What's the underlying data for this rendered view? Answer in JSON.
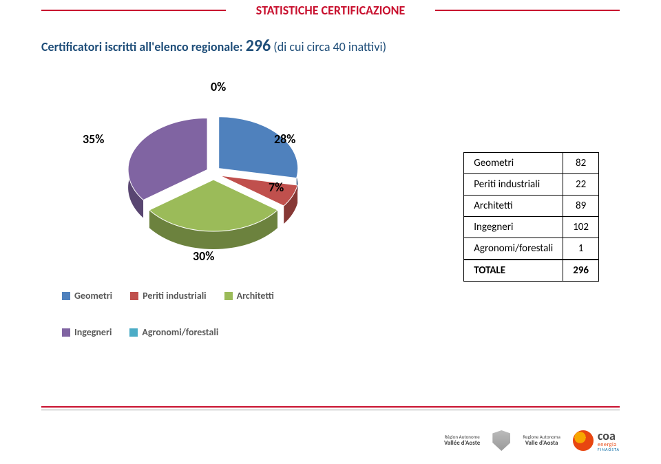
{
  "header": {
    "title": "STATISTICHE CERTIFICAZIONE"
  },
  "subtitle": {
    "prefix": "Certificatori iscritti all'elenco regionale: ",
    "count": "296",
    "suffix": " (di cui circa 40 inattivi)"
  },
  "chart": {
    "type": "pie-3d",
    "background_color": "#ffffff",
    "label_fontsize": 18,
    "label_color": "#000000",
    "slices": [
      {
        "label": "Geometri",
        "pct": 28,
        "pct_label": "28%",
        "color": "#4f81bd"
      },
      {
        "label": "Periti industriali",
        "pct": 7,
        "pct_label": "7%",
        "color": "#c0504d"
      },
      {
        "label": "Architetti",
        "pct": 30,
        "pct_label": "30%",
        "color": "#9bbb59"
      },
      {
        "label": "Ingegneri",
        "pct": 35,
        "pct_label": "35%",
        "color": "#8064a2"
      },
      {
        "label": "Agronomi/forestali",
        "pct": 0,
        "pct_label": "0%",
        "color": "#4bacc6"
      }
    ]
  },
  "table": {
    "rows": [
      {
        "label": "Geometri",
        "value": "82"
      },
      {
        "label": "Periti industriali",
        "value": "22"
      },
      {
        "label": "Architetti",
        "value": "89"
      },
      {
        "label": "Ingegneri",
        "value": "102"
      },
      {
        "label": "Agronomi/forestali",
        "value": "1"
      }
    ],
    "total": {
      "label": "TOTALE",
      "value": "296"
    }
  },
  "footer": {
    "logo1_top": "Région Autonome",
    "logo1_bottom": "Vallée d'Aoste",
    "logo2_top": "Regione Autonoma",
    "logo2_bottom": "Valle d'Aosta",
    "coa_brand": "coa",
    "coa_sub": "energia",
    "coa_small": "FINAOSTA"
  }
}
